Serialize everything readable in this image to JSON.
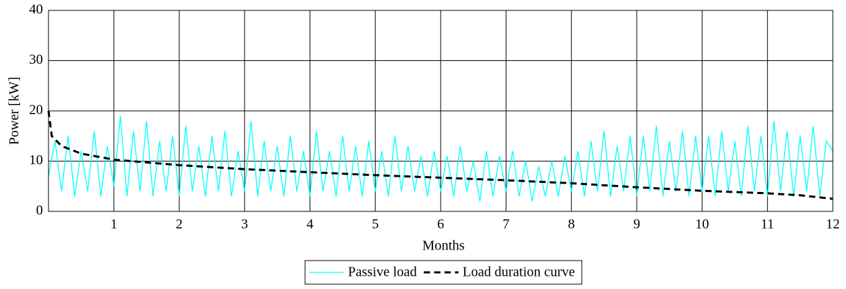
{
  "chart_data": {
    "type": "line",
    "xlabel": "Months",
    "ylabel": "Power [kW]",
    "xlim": [
      0,
      12
    ],
    "xticks": [
      1,
      2,
      3,
      4,
      5,
      6,
      7,
      8,
      9,
      10,
      11,
      12
    ],
    "ylim": [
      0,
      40
    ],
    "yticks": [
      0,
      10,
      20,
      30,
      40
    ],
    "grid": true,
    "legend": "bottom",
    "series": [
      {
        "name": "Passive load",
        "color": "#00ffff",
        "dash": false,
        "x": [
          0,
          0.1,
          0.2,
          0.3,
          0.4,
          0.5,
          0.6,
          0.7,
          0.8,
          0.9,
          1,
          1.1,
          1.2,
          1.3,
          1.4,
          1.5,
          1.6,
          1.7,
          1.8,
          1.9,
          2,
          2.1,
          2.2,
          2.3,
          2.4,
          2.5,
          2.6,
          2.7,
          2.8,
          2.9,
          3,
          3.1,
          3.2,
          3.3,
          3.4,
          3.5,
          3.6,
          3.7,
          3.8,
          3.9,
          4,
          4.1,
          4.2,
          4.3,
          4.4,
          4.5,
          4.6,
          4.7,
          4.8,
          4.9,
          5,
          5.1,
          5.2,
          5.3,
          5.4,
          5.5,
          5.6,
          5.7,
          5.8,
          5.9,
          6,
          6.1,
          6.2,
          6.3,
          6.4,
          6.5,
          6.6,
          6.7,
          6.8,
          6.9,
          7,
          7.1,
          7.2,
          7.3,
          7.4,
          7.5,
          7.6,
          7.7,
          7.8,
          7.9,
          8,
          8.1,
          8.2,
          8.3,
          8.4,
          8.5,
          8.6,
          8.7,
          8.8,
          8.9,
          9,
          9.1,
          9.2,
          9.3,
          9.4,
          9.5,
          9.6,
          9.7,
          9.8,
          9.9,
          10,
          10.1,
          10.2,
          10.3,
          10.4,
          10.5,
          10.6,
          10.7,
          10.8,
          10.9,
          11,
          11.1,
          11.2,
          11.3,
          11.4,
          11.5,
          11.6,
          11.7,
          11.8,
          11.9,
          12
        ],
        "values": [
          7,
          14,
          4,
          15,
          3,
          12,
          4,
          16,
          3,
          13,
          5,
          19,
          3,
          16,
          4,
          18,
          3,
          14,
          4,
          15,
          3,
          17,
          4,
          13,
          3,
          15,
          4,
          16,
          3,
          12,
          4,
          18,
          3,
          14,
          4,
          13,
          3,
          15,
          4,
          12,
          3,
          16,
          4,
          12,
          3,
          15,
          4,
          13,
          3,
          14,
          4,
          12,
          3,
          15,
          4,
          13,
          4,
          11,
          3,
          12,
          4,
          11,
          3,
          13,
          4,
          10,
          2,
          12,
          3,
          11,
          4,
          12,
          3,
          10,
          2,
          9,
          3,
          10,
          3,
          11,
          4,
          12,
          3,
          14,
          4,
          16,
          3,
          13,
          4,
          15,
          3,
          15,
          4,
          17,
          3,
          14,
          4,
          16,
          3,
          15,
          4,
          15,
          3,
          16,
          4,
          14,
          3,
          17,
          4,
          15,
          3,
          18,
          4,
          16,
          3,
          15,
          4,
          17,
          3,
          14,
          12
        ]
      },
      {
        "name": "Load duration curve",
        "color": "#000000",
        "dash": true,
        "x": [
          0,
          0.05,
          0.2,
          0.5,
          1,
          2,
          3,
          4,
          5,
          6,
          7,
          8,
          9,
          10,
          11,
          11.5,
          12
        ],
        "values": [
          20,
          15,
          13,
          11.5,
          10.3,
          9.2,
          8.4,
          7.8,
          7.2,
          6.7,
          6.2,
          5.6,
          4.8,
          4.1,
          3.6,
          3.2,
          2.5
        ]
      }
    ]
  }
}
